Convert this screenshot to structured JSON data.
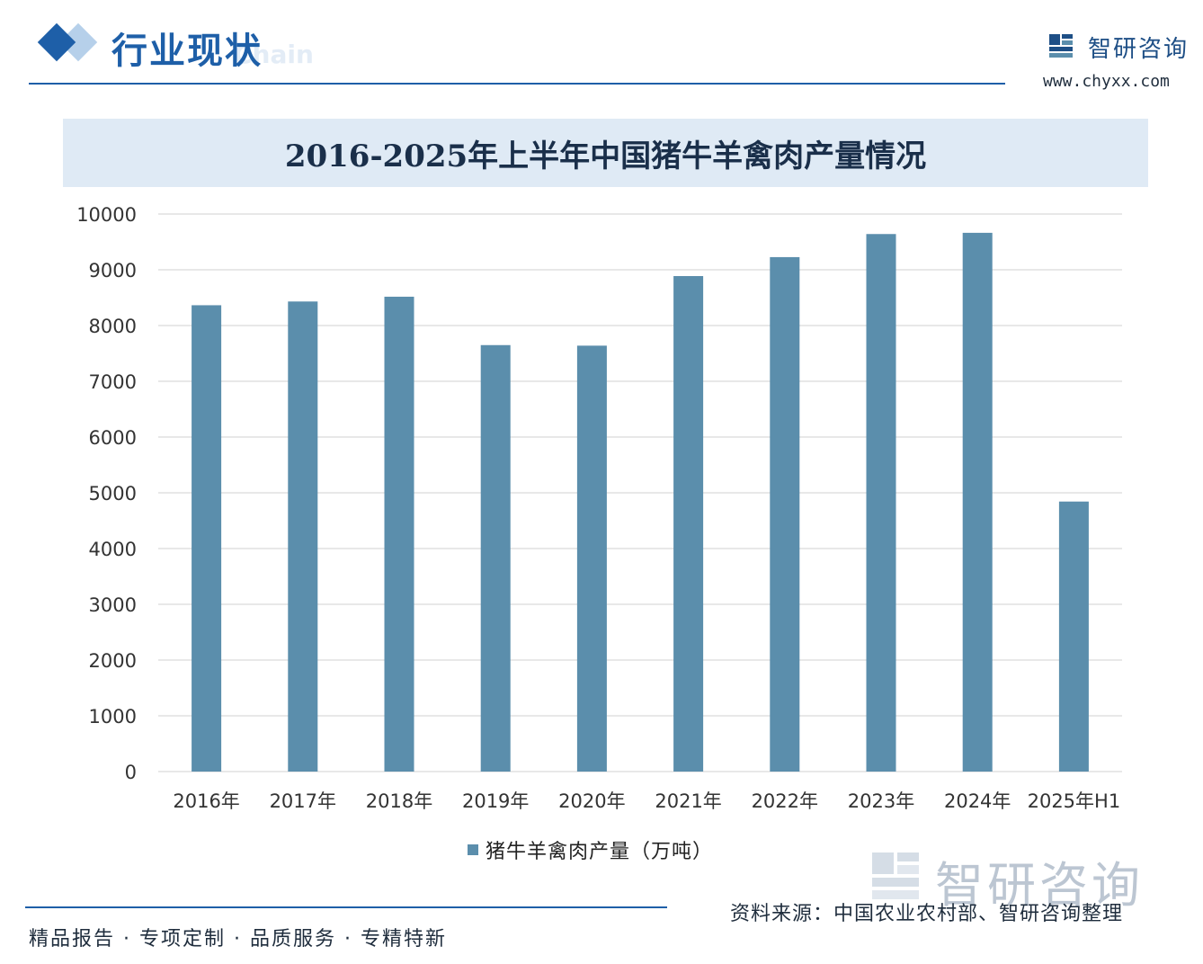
{
  "header": {
    "section_title": "行业现状",
    "section_subtitle": "Chain",
    "brand_name": "智研咨询",
    "brand_url": "www.chyxx.com"
  },
  "chart_data": {
    "type": "bar",
    "title": "2016-2025年上半年中国猪牛羊禽肉产量情况",
    "categories": [
      "2016年",
      "2017年",
      "2018年",
      "2019年",
      "2020年",
      "2021年",
      "2022年",
      "2023年",
      "2024年",
      "2025年H1"
    ],
    "series": [
      {
        "name": "猪牛羊禽肉产量（万吨）",
        "values": [
          8364,
          8431,
          8517,
          7649,
          7639,
          8887,
          9227,
          9641,
          9663,
          4843
        ]
      }
    ],
    "yticks": [
      "0",
      "1000",
      "2000",
      "3000",
      "4000",
      "5000",
      "6000",
      "7000",
      "8000",
      "9000",
      "10000"
    ],
    "ylim": [
      0,
      10000
    ],
    "grid": true,
    "legend_position": "bottom",
    "colors": {
      "bar": "#5b8eac",
      "grid": "#d9d9d9"
    }
  },
  "footer": {
    "source": "资料来源：中国农业农村部、智研咨询整理",
    "slogan": "精品报告 · 专项定制 · 品质服务 · 专精特新",
    "watermark_name": "智研咨询"
  }
}
